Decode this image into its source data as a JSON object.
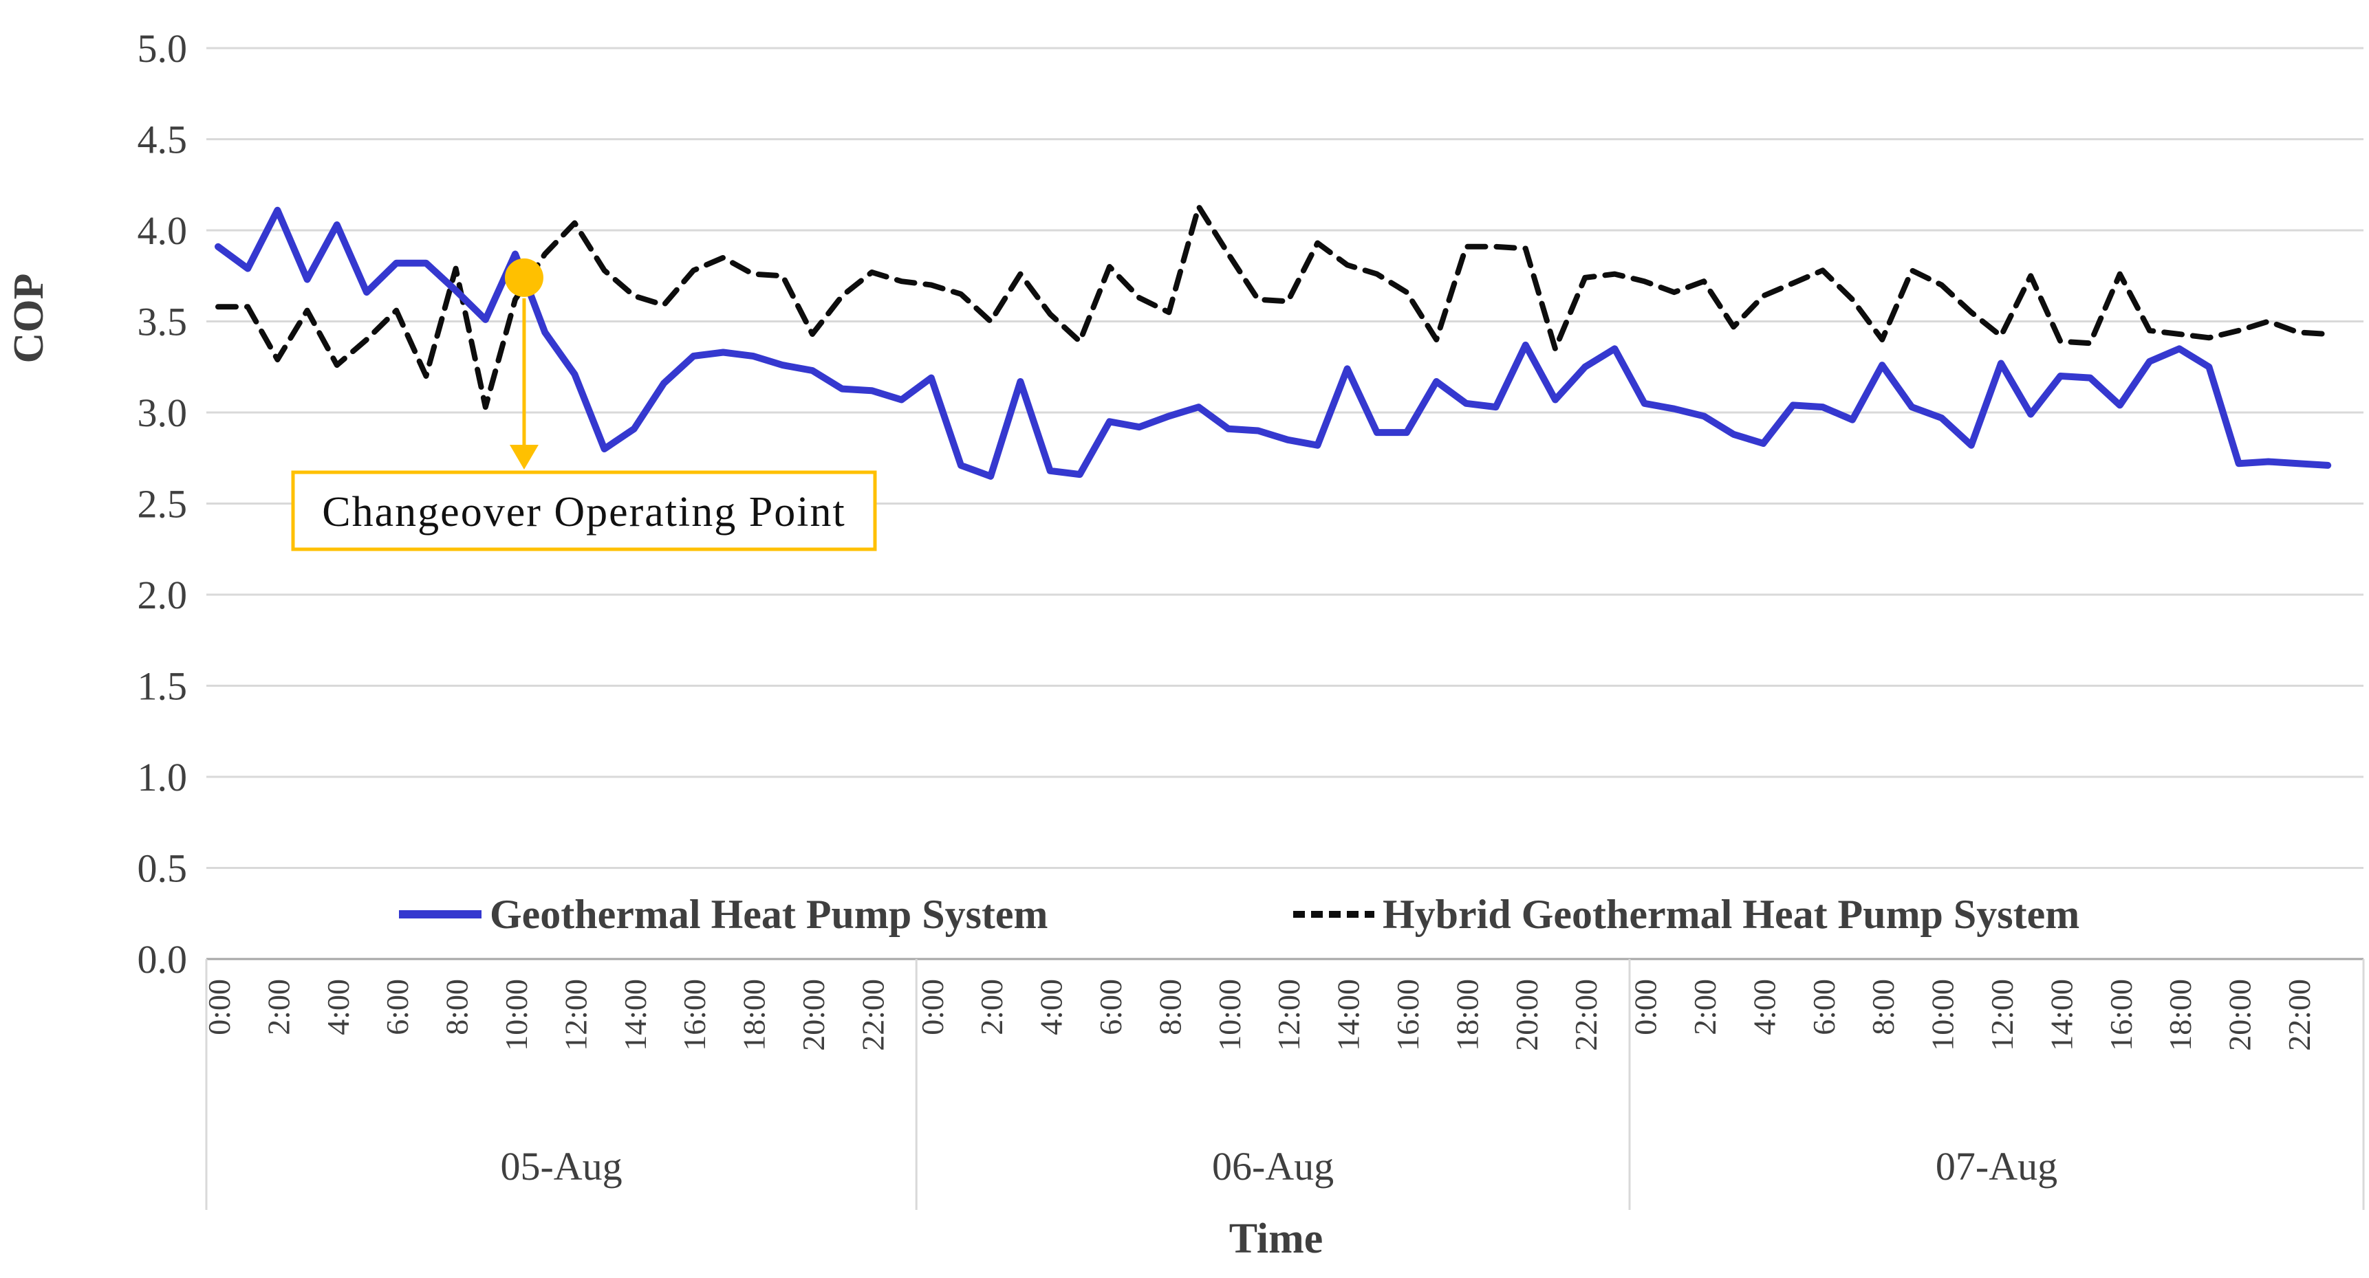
{
  "chart_data": {
    "type": "line",
    "xlabel": "Time",
    "ylabel": "COP",
    "ylim": [
      0.0,
      5.0
    ],
    "ytick_step": 0.5,
    "y_ticks": [
      "5.0",
      "4.5",
      "4.0",
      "3.5",
      "3.0",
      "2.5",
      "2.0",
      "1.5",
      "1.0",
      "0.5",
      "0.0"
    ],
    "time_ticks": [
      "0:00",
      "2:00",
      "4:00",
      "6:00",
      "8:00",
      "10:00",
      "12:00",
      "14:00",
      "16:00",
      "18:00",
      "20:00",
      "22:00"
    ],
    "days": [
      "05-Aug",
      "06-Aug",
      "07-Aug"
    ],
    "grid": "horizontal-on",
    "legend_position": "bottom",
    "points_per_day": 24,
    "series": [
      {
        "name": "Geothermal Heat Pump System",
        "color": "#3538cf",
        "dash": "solid",
        "values": [
          3.91,
          3.79,
          4.11,
          3.73,
          4.03,
          3.66,
          3.82,
          3.82,
          3.67,
          3.51,
          3.87,
          3.44,
          3.21,
          2.8,
          2.91,
          3.16,
          3.31,
          3.33,
          3.31,
          3.26,
          3.23,
          3.13,
          3.12,
          3.07,
          3.19,
          2.71,
          2.65,
          3.17,
          2.68,
          2.66,
          2.95,
          2.92,
          2.98,
          3.03,
          2.91,
          2.9,
          2.85,
          2.82,
          3.24,
          2.89,
          2.89,
          3.17,
          3.05,
          3.03,
          3.37,
          3.07,
          3.25,
          3.35,
          3.05,
          3.02,
          2.98,
          2.88,
          2.83,
          3.04,
          3.03,
          2.96,
          3.26,
          3.03,
          2.97,
          2.82,
          3.27,
          2.99,
          3.2,
          3.19,
          3.04,
          3.28,
          3.35,
          3.25,
          2.72,
          2.73,
          2.72,
          2.71
        ]
      },
      {
        "name": "Hybrid Geothermal Heat Pump System",
        "color": "#0d0d0d",
        "dash": "dashed",
        "values": [
          3.58,
          3.58,
          3.29,
          3.56,
          3.26,
          3.4,
          3.56,
          3.2,
          3.79,
          3.03,
          3.62,
          3.87,
          4.04,
          3.78,
          3.64,
          3.59,
          3.78,
          3.85,
          3.76,
          3.75,
          3.43,
          3.64,
          3.77,
          3.72,
          3.7,
          3.65,
          3.5,
          3.76,
          3.54,
          3.39,
          3.8,
          3.63,
          3.55,
          4.13,
          3.87,
          3.62,
          3.61,
          3.93,
          3.81,
          3.76,
          3.66,
          3.4,
          3.91,
          3.91,
          3.9,
          3.35,
          3.74,
          3.76,
          3.72,
          3.66,
          3.72,
          3.47,
          3.64,
          3.71,
          3.78,
          3.62,
          3.4,
          3.78,
          3.7,
          3.55,
          3.42,
          3.75,
          3.39,
          3.38,
          3.76,
          3.45,
          3.43,
          3.41,
          3.45,
          3.5,
          3.44,
          3.43
        ]
      }
    ],
    "annotation": {
      "label": "Changeover Operating Point",
      "day": "05-Aug",
      "hour": 10.3,
      "cop": 3.74,
      "marker_color": "#ffc000"
    }
  }
}
